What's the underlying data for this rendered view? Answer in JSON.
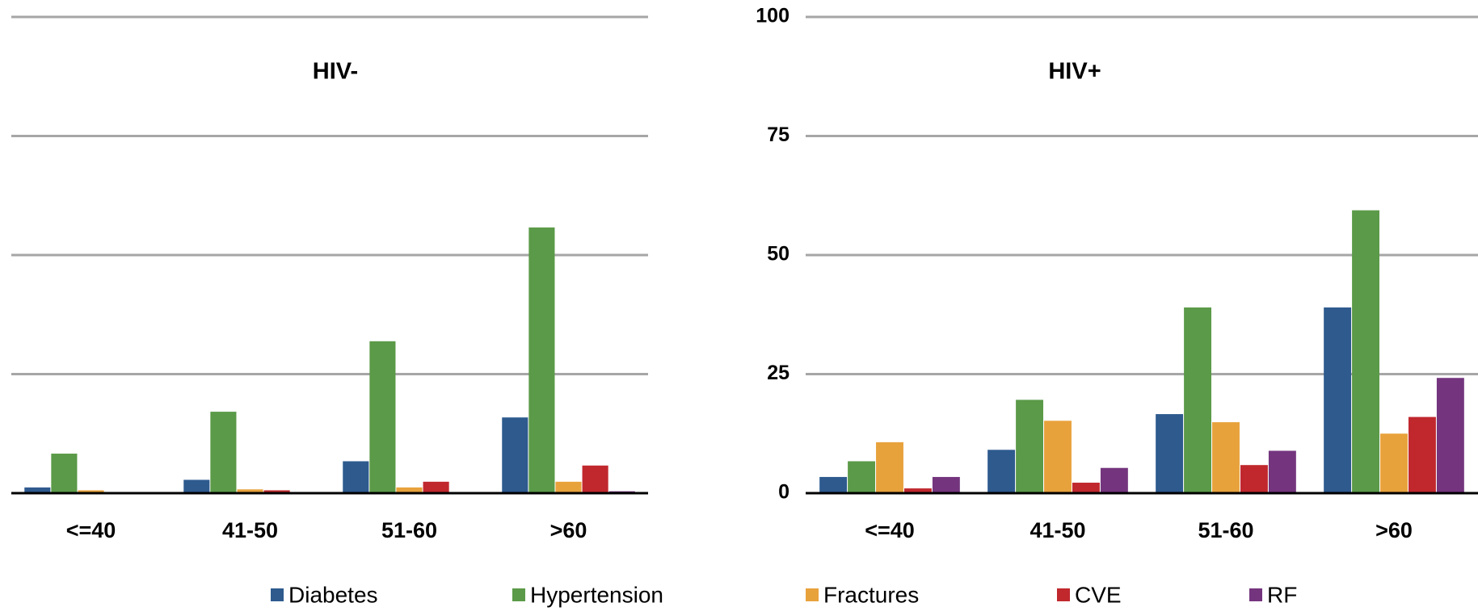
{
  "chart_data": [
    {
      "type": "bar",
      "title": "HIV-",
      "categories": [
        "<=40",
        "41-50",
        "51-60",
        ">60"
      ],
      "series": [
        {
          "name": "Diabetes",
          "color": "#2e5a8e",
          "values": [
            1.2,
            2.8,
            6.7,
            15.9
          ]
        },
        {
          "name": "Hypertension",
          "color": "#5b9a48",
          "values": [
            8.3,
            17.1,
            31.9,
            55.8
          ]
        },
        {
          "name": "Fractures",
          "color": "#e8a23c",
          "values": [
            0.6,
            0.8,
            1.2,
            2.4
          ]
        },
        {
          "name": "CVE",
          "color": "#c0282e",
          "values": [
            0,
            0.6,
            2.4,
            5.8
          ]
        },
        {
          "name": "RF",
          "color": "#74357e",
          "values": [
            0,
            0,
            0,
            0.4
          ]
        }
      ],
      "ylim": [
        0,
        100
      ],
      "yticks": [
        0,
        25,
        50,
        75,
        100
      ],
      "show_ytick_labels": false,
      "grid": true,
      "legend": false
    },
    {
      "type": "bar",
      "title": "HIV+",
      "categories": [
        "<=40",
        "41-50",
        "51-60",
        ">60"
      ],
      "series": [
        {
          "name": "Diabetes",
          "color": "#2e5a8e",
          "values": [
            3.4,
            9.1,
            16.6,
            39.0
          ]
        },
        {
          "name": "Hypertension",
          "color": "#5b9a48",
          "values": [
            6.7,
            19.6,
            39.0,
            59.4
          ]
        },
        {
          "name": "Fractures",
          "color": "#e8a23c",
          "values": [
            10.7,
            15.2,
            14.9,
            12.5
          ]
        },
        {
          "name": "CVE",
          "color": "#c0282e",
          "values": [
            1.0,
            2.2,
            5.9,
            16.0
          ]
        },
        {
          "name": "RF",
          "color": "#74357e",
          "values": [
            3.4,
            5.3,
            8.9,
            24.2
          ]
        }
      ],
      "ylim": [
        0,
        100
      ],
      "yticks": [
        0,
        25,
        50,
        75,
        100
      ],
      "show_ytick_labels": true,
      "grid": true,
      "legend": true
    }
  ]
}
